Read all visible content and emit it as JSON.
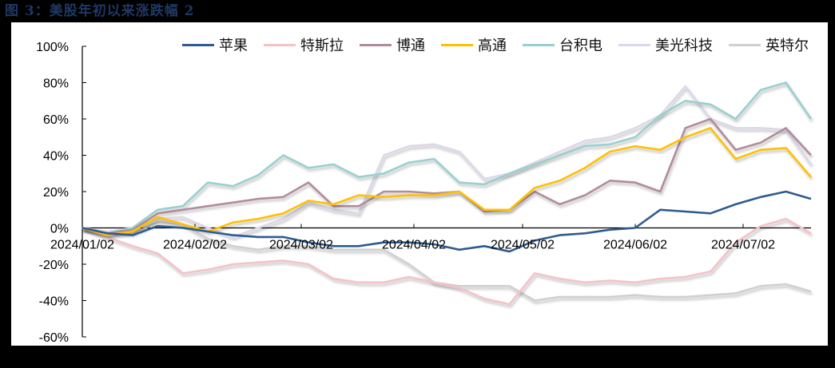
{
  "title": "图 3：美股年初以来涨跌幅 2",
  "chart_data": {
    "type": "line",
    "title": "美股年初以来涨跌幅 2",
    "xlabel": "",
    "ylabel": "",
    "ylim": [
      -0.6,
      1.0
    ],
    "yticks": [
      "100%",
      "80%",
      "60%",
      "40%",
      "20%",
      "0%",
      "-20%",
      "-40%",
      "-60%"
    ],
    "ytick_values": [
      1.0,
      0.8,
      0.6,
      0.4,
      0.2,
      0.0,
      -0.2,
      -0.4,
      -0.6
    ],
    "xticks": [
      "2024/01/02",
      "2024/02/02",
      "2024/03/02",
      "2024/04/02",
      "2024/05/02",
      "2024/06/02",
      "2024/07/02"
    ],
    "grid": false,
    "legend_position": "top",
    "x": [
      "01/02",
      "01/09",
      "01/16",
      "01/23",
      "01/30",
      "02/06",
      "02/13",
      "02/20",
      "02/27",
      "03/05",
      "03/12",
      "03/19",
      "03/26",
      "04/02",
      "04/09",
      "04/16",
      "04/23",
      "04/30",
      "05/07",
      "05/14",
      "05/21",
      "05/28",
      "06/04",
      "06/11",
      "06/18",
      "06/25",
      "07/02",
      "07/09",
      "07/16",
      "07/23"
    ],
    "series": [
      {
        "name": "苹果",
        "color": "#2e5c8f",
        "shadow": false,
        "values": [
          0.0,
          -0.03,
          -0.04,
          0.01,
          0.0,
          -0.02,
          -0.04,
          -0.05,
          -0.05,
          -0.08,
          -0.1,
          -0.1,
          -0.08,
          -0.08,
          -0.09,
          -0.12,
          -0.1,
          -0.13,
          -0.07,
          -0.04,
          -0.03,
          -0.01,
          0.0,
          0.1,
          0.09,
          0.08,
          0.13,
          0.17,
          0.2,
          0.16
        ]
      },
      {
        "name": "特斯拉",
        "color": "#f4c2c7",
        "shadow": true,
        "values": [
          0.0,
          -0.05,
          -0.1,
          -0.14,
          -0.25,
          -0.23,
          -0.2,
          -0.19,
          -0.18,
          -0.2,
          -0.28,
          -0.3,
          -0.3,
          -0.27,
          -0.3,
          -0.33,
          -0.39,
          -0.42,
          -0.25,
          -0.28,
          -0.3,
          -0.29,
          -0.3,
          -0.28,
          -0.27,
          -0.24,
          -0.08,
          0.01,
          0.05,
          -0.03
        ]
      },
      {
        "name": "博通",
        "color": "#b18c9c",
        "shadow": true,
        "values": [
          0.0,
          -0.03,
          -0.01,
          0.08,
          0.1,
          0.12,
          0.14,
          0.16,
          0.17,
          0.25,
          0.12,
          0.12,
          0.2,
          0.2,
          0.19,
          0.2,
          0.09,
          0.1,
          0.2,
          0.13,
          0.18,
          0.26,
          0.25,
          0.2,
          0.55,
          0.6,
          0.43,
          0.47,
          0.55,
          0.4
        ]
      },
      {
        "name": "高通",
        "color": "#ffc000",
        "shadow": true,
        "values": [
          0.0,
          -0.04,
          -0.02,
          0.06,
          0.02,
          -0.02,
          0.03,
          0.05,
          0.08,
          0.15,
          0.13,
          0.18,
          0.17,
          0.18,
          0.18,
          0.2,
          0.1,
          0.1,
          0.22,
          0.26,
          0.33,
          0.42,
          0.45,
          0.43,
          0.5,
          0.55,
          0.38,
          0.43,
          0.44,
          0.28
        ]
      },
      {
        "name": "台积电",
        "color": "#97d0ce",
        "shadow": true,
        "values": [
          0.0,
          -0.03,
          0.0,
          0.1,
          0.12,
          0.25,
          0.23,
          0.29,
          0.4,
          0.33,
          0.35,
          0.28,
          0.3,
          0.36,
          0.38,
          0.25,
          0.24,
          0.3,
          0.35,
          0.4,
          0.45,
          0.46,
          0.5,
          0.62,
          0.7,
          0.68,
          0.6,
          0.76,
          0.8,
          0.6
        ]
      },
      {
        "name": "美光科技",
        "color": "#dcd8ea",
        "shadow": true,
        "values": [
          0.0,
          -0.02,
          0.0,
          0.05,
          0.06,
          0.0,
          -0.05,
          0.0,
          0.05,
          0.14,
          0.1,
          0.08,
          0.4,
          0.45,
          0.46,
          0.42,
          0.27,
          0.3,
          0.36,
          0.42,
          0.48,
          0.5,
          0.55,
          0.62,
          0.78,
          0.6,
          0.55,
          0.55,
          0.54,
          0.35
        ]
      },
      {
        "name": "英特尔",
        "color": "#d0d0d0",
        "shadow": true,
        "values": [
          0.0,
          -0.03,
          -0.03,
          0.03,
          0.02,
          -0.06,
          -0.1,
          -0.12,
          -0.1,
          -0.1,
          -0.12,
          -0.12,
          -0.12,
          -0.2,
          -0.3,
          -0.32,
          -0.32,
          -0.32,
          -0.4,
          -0.38,
          -0.38,
          -0.38,
          -0.37,
          -0.38,
          -0.38,
          -0.37,
          -0.36,
          -0.32,
          -0.31,
          -0.35
        ]
      }
    ]
  },
  "legend": [
    {
      "label": "苹果",
      "color": "#2e5c8f"
    },
    {
      "label": "特斯拉",
      "color": "#f4c2c7"
    },
    {
      "label": "博通",
      "color": "#b18c9c"
    },
    {
      "label": "高通",
      "color": "#ffc000"
    },
    {
      "label": "台积电",
      "color": "#97d0ce"
    },
    {
      "label": "美光科技",
      "color": "#dcd8ea"
    },
    {
      "label": "英特尔",
      "color": "#d0d0d0"
    }
  ]
}
